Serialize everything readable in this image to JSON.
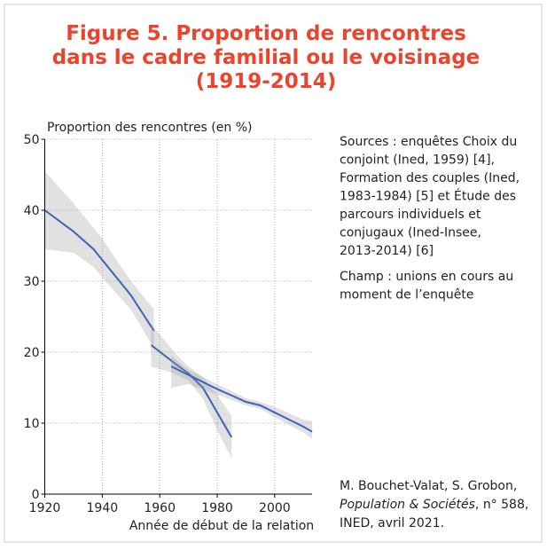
{
  "chart_data": {
    "type": "line",
    "title": [
      "Figure 5. Proportion de rencontres",
      "dans le cadre familial ou le voisinage",
      "(1919-2014)"
    ],
    "ylabel": "Proportion des rencontres (en %)",
    "xlabel": "Année de début de la relation",
    "xlim": [
      1920,
      2013
    ],
    "xticks": [
      1920,
      1940,
      1960,
      1980,
      2000
    ],
    "ylim": [
      0,
      50
    ],
    "yticks": [
      0,
      10,
      20,
      30,
      40,
      50
    ],
    "grid": true,
    "series": [
      {
        "color": "#3a64b8",
        "x": [
          1920,
          1930,
          1937,
          1940,
          1950,
          1958
        ],
        "values": [
          40,
          37,
          34.5,
          33,
          28,
          23
        ],
        "upper": [
          45.5,
          41,
          37.5,
          36,
          30,
          26
        ],
        "lower": [
          34.5,
          34,
          32,
          30.5,
          26,
          20.5
        ]
      },
      {
        "color": "#3a64b8",
        "x": [
          1957,
          1965,
          1970,
          1975,
          1980,
          1985
        ],
        "values": [
          21,
          18.5,
          17,
          15,
          11.5,
          8
        ],
        "upper": [
          24,
          20,
          18,
          16.5,
          14,
          11
        ],
        "lower": [
          18,
          17,
          16,
          13.5,
          9,
          5
        ]
      },
      {
        "color": "#3a64b8",
        "x": [
          1964,
          1970,
          1980,
          1990,
          1995,
          2000,
          2010,
          2013
        ],
        "values": [
          18,
          16.8,
          14.8,
          13,
          12.5,
          11.5,
          9.5,
          8.8
        ],
        "upper": [
          19.5,
          17.5,
          15.5,
          13.5,
          13,
          12.3,
          10.5,
          10.3
        ],
        "lower": [
          15,
          15.5,
          14,
          12.5,
          12,
          10.8,
          8.7,
          7.8
        ]
      }
    ],
    "sources": [
      "Sources : enquêtes Choix du",
      "conjoint (Ined, 1959) [4],",
      "Formation des couples (Ined,",
      "1983-1984) [5] et Étude des",
      "parcours individuels et",
      "conjugaux (Ined-Insee,",
      "2013-2014) [6]"
    ],
    "scope": [
      "Champ : unions en cours au",
      "moment de l’enquête"
    ],
    "credit": {
      "authors": "M. Bouchet-Valat, S. Grobon,",
      "journal": "Population & Sociétés",
      "issue": ", n° 588,",
      "publisher": "INED, avril 2021."
    }
  }
}
